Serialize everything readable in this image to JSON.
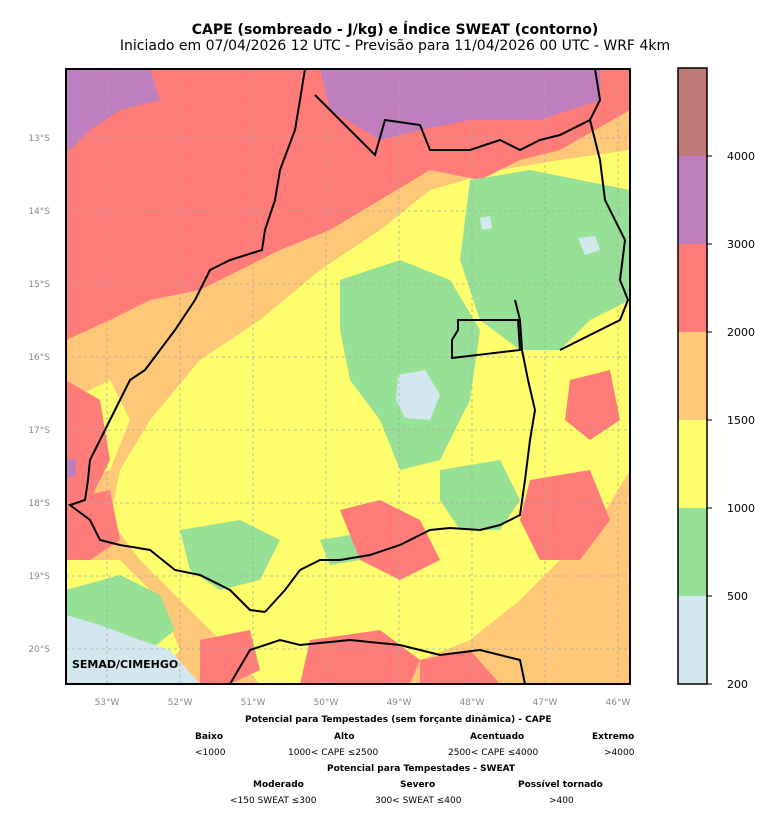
{
  "title": "CAPE (sombreado - J/kg) e Índice SWEAT (contorno)",
  "subtitle": "Iniciado em 07/04/2026 12 UTC - Previsão para 11/04/2026 00 UTC - WRF 4km",
  "credit": "SEMAD/CIMEHGO",
  "lat_labels": [
    "13°S",
    "14°S",
    "15°S",
    "16°S",
    "17°S",
    "18°S",
    "19°S",
    "20°S"
  ],
  "lon_labels": [
    "53°W",
    "52°W",
    "51°W",
    "50°W",
    "49°W",
    "48°W",
    "47°W",
    "46°W"
  ],
  "colorbar": {
    "levels": [
      "200",
      "500",
      "1000",
      "1500",
      "2000",
      "3000",
      "4000"
    ],
    "colors": [
      "#d2e8ee",
      "#96e196",
      "#ffff6e",
      "#ffc878",
      "#ff7c78",
      "#bf7fbf",
      "#c07a7a"
    ]
  },
  "legend": {
    "cape_title": "Potencial para Tempestades (sem forçante dinâmica) - CAPE",
    "cape_classes": [
      {
        "name": "Baixo",
        "range": "<1000"
      },
      {
        "name": "Alto",
        "range": "1000< CAPE ≤2500"
      },
      {
        "name": "Acentuado",
        "range": "2500< CAPE ≤4000"
      },
      {
        "name": "Extremo",
        "range": ">4000"
      }
    ],
    "sweat_title": "Potencial para Tempestades - SWEAT",
    "sweat_classes": [
      {
        "name": "Moderado",
        "range": "<150 SWEAT ≤300"
      },
      {
        "name": "Severo",
        "range": "300< SWEAT ≤400"
      },
      {
        "name": "Possível tornado",
        "range": ">400"
      }
    ]
  }
}
